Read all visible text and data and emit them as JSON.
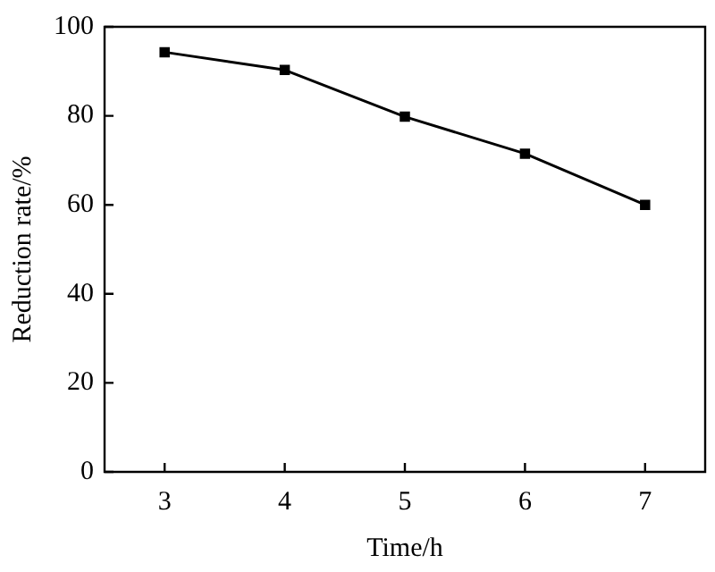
{
  "chart_data": {
    "type": "line",
    "xlabel": "Time/h",
    "ylabel": "Reduction rate/%",
    "x": [
      3,
      4,
      5,
      6,
      7
    ],
    "series": [
      {
        "color": "#000000",
        "values": [
          94.3,
          90.3,
          79.8,
          71.5,
          60
        ]
      }
    ],
    "xlim": [
      2.5,
      7.5
    ],
    "xticks": [
      3,
      4,
      5,
      6,
      7
    ],
    "ylim": [
      0,
      100
    ],
    "yticks": [
      0,
      20,
      40,
      60,
      80,
      100
    ],
    "marker": "square",
    "line_style": "solid",
    "legend": false,
    "grid": false
  }
}
